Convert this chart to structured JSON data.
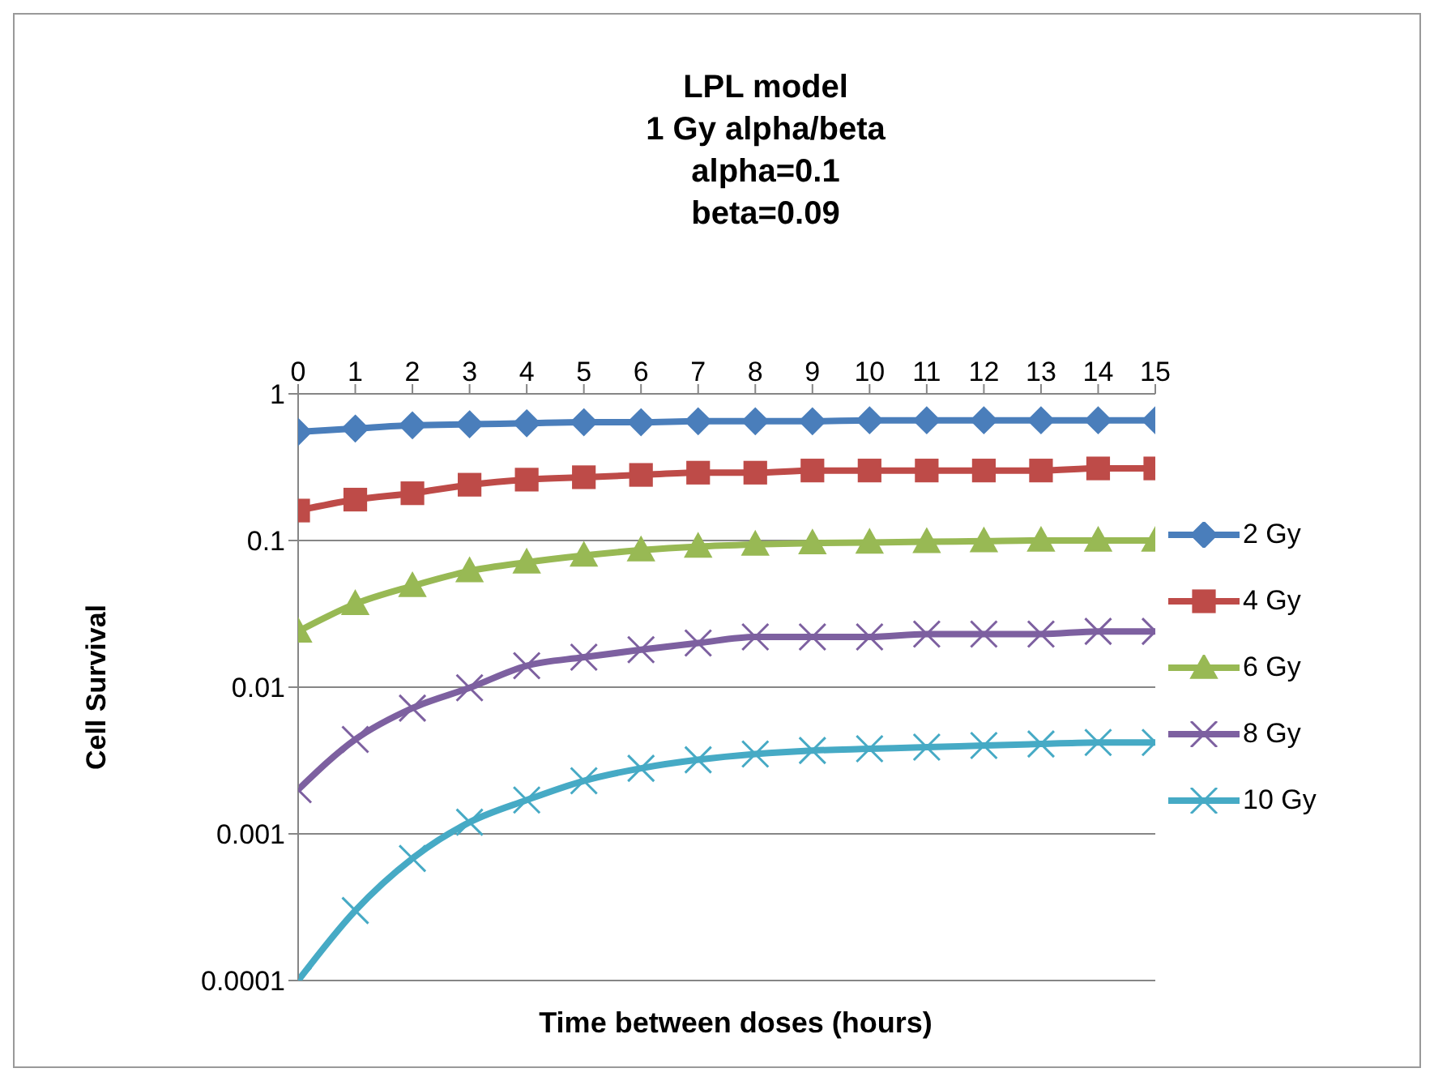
{
  "chart_data": {
    "type": "line",
    "title": "LPL model\n1 Gy alpha/beta\nalpha=0.1\nbeta=0.09",
    "xlabel": "Time between doses (hours)",
    "ylabel": "Cell  Survival",
    "x": [
      0,
      1,
      2,
      3,
      4,
      5,
      6,
      7,
      8,
      9,
      10,
      11,
      12,
      13,
      14,
      15
    ],
    "series": [
      {
        "name": "2 Gy",
        "color": "#4a7ebb",
        "marker": "diamond",
        "values": [
          0.55,
          0.58,
          0.61,
          0.62,
          0.63,
          0.64,
          0.64,
          0.65,
          0.65,
          0.65,
          0.66,
          0.66,
          0.66,
          0.66,
          0.66,
          0.66
        ]
      },
      {
        "name": "4 Gy",
        "color": "#be4b48",
        "marker": "square",
        "values": [
          0.16,
          0.19,
          0.21,
          0.24,
          0.26,
          0.27,
          0.28,
          0.29,
          0.29,
          0.3,
          0.3,
          0.3,
          0.3,
          0.3,
          0.31,
          0.31
        ]
      },
      {
        "name": "6 Gy",
        "color": "#98b954",
        "marker": "triangle",
        "values": [
          0.024,
          0.037,
          0.049,
          0.062,
          0.071,
          0.079,
          0.086,
          0.091,
          0.094,
          0.096,
          0.097,
          0.098,
          0.099,
          0.1,
          0.1,
          0.1
        ]
      },
      {
        "name": "8 Gy",
        "color": "#7d60a0",
        "marker": "cross",
        "values": [
          0.002,
          0.0044,
          0.0072,
          0.0099,
          0.014,
          0.016,
          0.018,
          0.02,
          0.022,
          0.022,
          0.022,
          0.023,
          0.023,
          0.023,
          0.024,
          0.024
        ]
      },
      {
        "name": "10 Gy",
        "color": "#46aac5",
        "marker": "cross",
        "values": [
          0.0001,
          0.0003,
          0.00068,
          0.0012,
          0.0017,
          0.0023,
          0.0028,
          0.0032,
          0.0035,
          0.0037,
          0.0038,
          0.0039,
          0.004,
          0.0041,
          0.0042,
          0.0042
        ]
      }
    ],
    "xlim": [
      0,
      15
    ],
    "xticks": [
      0,
      1,
      2,
      3,
      4,
      5,
      6,
      7,
      8,
      9,
      10,
      11,
      12,
      13,
      14,
      15
    ],
    "ylim": [
      0.0001,
      1
    ],
    "yticks": [
      0.0001,
      0.001,
      0.01,
      0.1,
      1
    ],
    "log": true,
    "grid": "y",
    "legend": "right"
  }
}
